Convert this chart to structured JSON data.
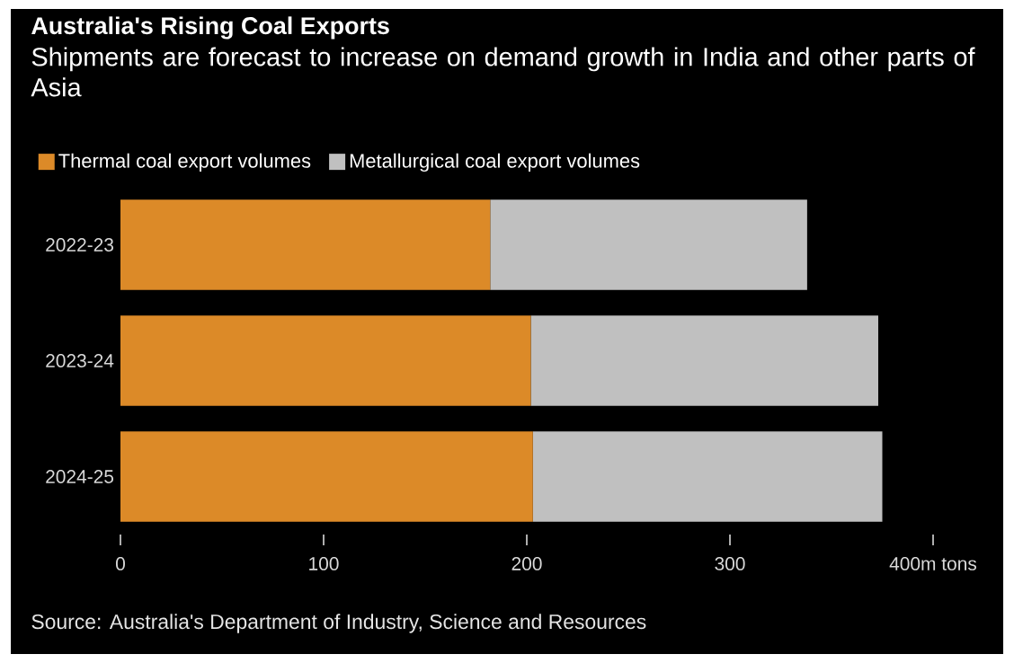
{
  "chart_data": {
    "type": "bar",
    "orientation": "horizontal",
    "stacked": true,
    "title": "Australia's Rising Coal Exports",
    "subtitle": "Shipments are forecast to increase on demand growth in India and other parts of Asia",
    "categories": [
      "2022-23",
      "2023-24",
      "2024-25"
    ],
    "series": [
      {
        "name": "Thermal coal export volumes",
        "color": "#dc8a28",
        "values": [
          182,
          202,
          203
        ]
      },
      {
        "name": "Metallurgical coal export volumes",
        "color": "#c0c0c0",
        "values": [
          156,
          171,
          172
        ]
      }
    ],
    "xlim": [
      0,
      400
    ],
    "xticks": [
      0,
      100,
      200,
      300,
      {
        "value": 400,
        "label": "400m tons"
      }
    ],
    "legend": "top left",
    "annotations": [
      "Source: Australia's Department of Industry, Science and Resources"
    ]
  }
}
